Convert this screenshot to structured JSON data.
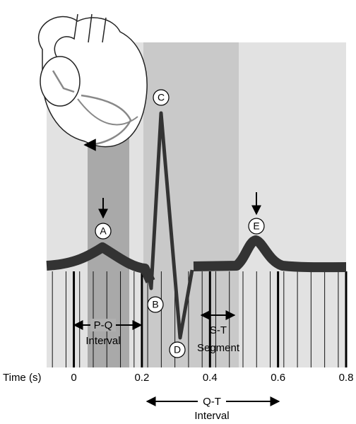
{
  "axis": {
    "label": "Time (s)",
    "xlim": [
      -0.08,
      0.8
    ],
    "xticks": [
      0,
      0.2,
      0.4,
      0.6,
      0.8
    ]
  },
  "waves": [
    "A",
    "B",
    "C",
    "D",
    "E"
  ],
  "intervals": {
    "pq": {
      "name": "P-Q",
      "word": "Interval"
    },
    "st": {
      "name": "S-T",
      "word": "Segment"
    },
    "qt": {
      "name": "Q-T",
      "word": "Interval"
    }
  }
}
